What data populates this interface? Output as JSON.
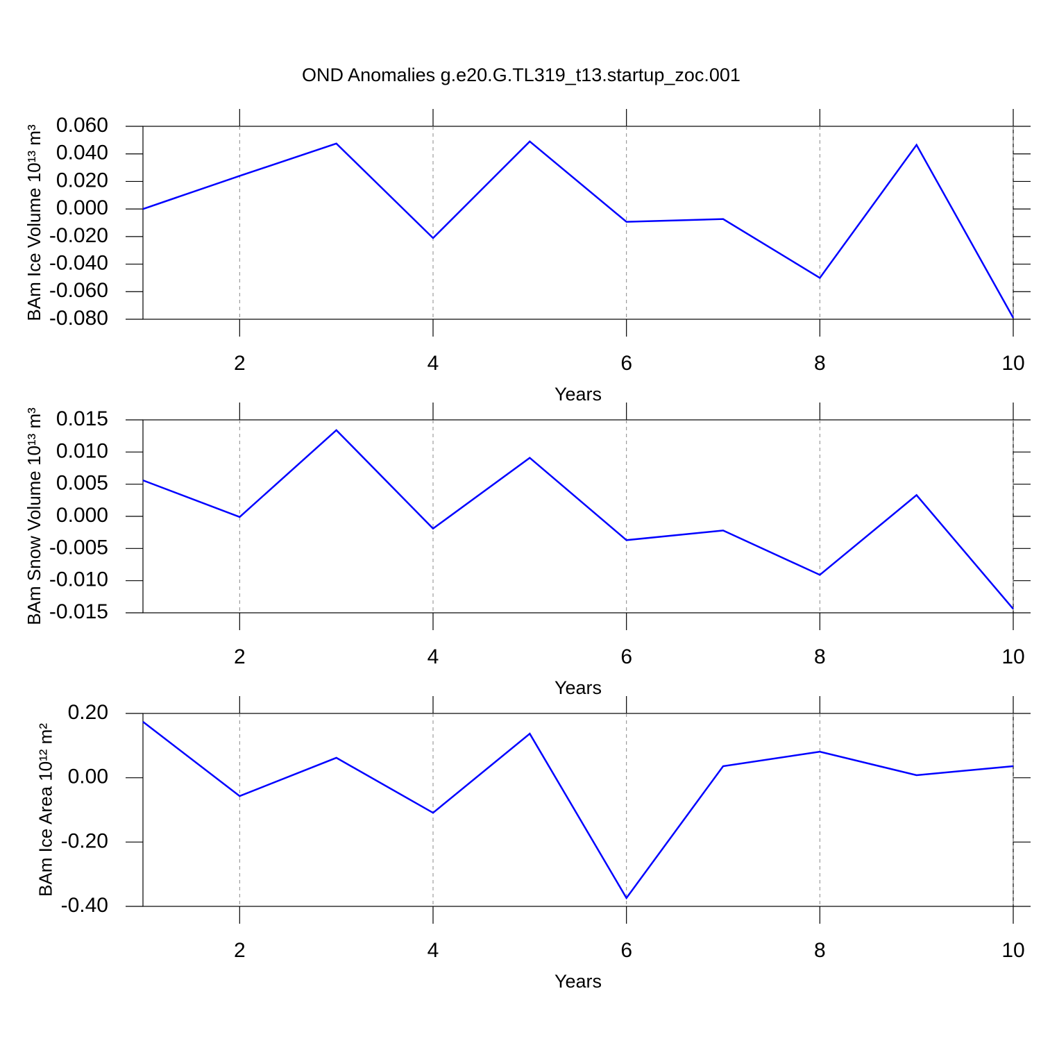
{
  "title": "OND Anomalies g.e20.G.TL319_t13.startup_zoc.001",
  "chart_data": [
    {
      "type": "line",
      "ylabel": "BAm Ice Volume 10¹³ m³",
      "xlabel": "Years",
      "x": [
        1,
        2,
        3,
        4,
        5,
        6,
        7,
        8,
        9,
        10
      ],
      "series": [
        {
          "color": "#0000ff",
          "values": [
            0.0,
            0.024,
            0.0475,
            -0.0211,
            0.049,
            -0.0093,
            -0.0073,
            -0.05,
            0.0465,
            -0.079
          ]
        }
      ],
      "xlim": [
        1,
        10
      ],
      "xticks": [
        2,
        4,
        6,
        8,
        10
      ],
      "ylim": [
        -0.08,
        0.06
      ],
      "yticks": [
        {
          "value": -0.08,
          "label": "-0.080"
        },
        {
          "value": -0.06,
          "label": "-0.060"
        },
        {
          "value": -0.04,
          "label": "-0.040"
        },
        {
          "value": -0.02,
          "label": "-0.020"
        },
        {
          "value": 0,
          "label": "0.000"
        },
        {
          "value": 0.02,
          "label": "0.020"
        },
        {
          "value": 0.04,
          "label": "0.040"
        },
        {
          "value": 0.06,
          "label": "0.060"
        }
      ],
      "grid": true
    },
    {
      "type": "line",
      "ylabel": "BAm Snow Volume 10¹³ m³",
      "xlabel": "Years",
      "x": [
        1,
        2,
        3,
        4,
        5,
        6,
        7,
        8,
        9,
        10
      ],
      "series": [
        {
          "color": "#0000ff",
          "values": [
            0.0056,
            -0.0001,
            0.0134,
            -0.0019,
            0.0091,
            -0.0037,
            -0.0022,
            -0.0091,
            0.0033,
            -0.0144
          ]
        }
      ],
      "xlim": [
        1,
        10
      ],
      "xticks": [
        2,
        4,
        6,
        8,
        10
      ],
      "ylim": [
        -0.015,
        0.015
      ],
      "yticks": [
        {
          "value": -0.015,
          "label": "-0.015"
        },
        {
          "value": -0.01,
          "label": "-0.010"
        },
        {
          "value": -0.005,
          "label": "-0.005"
        },
        {
          "value": 0,
          "label": "0.000"
        },
        {
          "value": 0.005,
          "label": "0.005"
        },
        {
          "value": 0.01,
          "label": "0.010"
        },
        {
          "value": 0.015,
          "label": "0.015"
        }
      ],
      "grid": true
    },
    {
      "type": "line",
      "ylabel": "BAm Ice Area 10¹² m²",
      "xlabel": "Years",
      "x": [
        1,
        2,
        3,
        4,
        5,
        6,
        7,
        8,
        9,
        10
      ],
      "series": [
        {
          "color": "#0000ff",
          "values": [
            0.174,
            -0.057,
            0.062,
            -0.109,
            0.137,
            -0.374,
            0.036,
            0.081,
            0.008,
            0.036
          ]
        }
      ],
      "xlim": [
        1,
        10
      ],
      "xticks": [
        2,
        4,
        6,
        8,
        10
      ],
      "ylim": [
        -0.4,
        0.2
      ],
      "yticks": [
        {
          "value": -0.4,
          "label": "-0.40"
        },
        {
          "value": -0.2,
          "label": "-0.20"
        },
        {
          "value": 0,
          "label": "0.00"
        },
        {
          "value": 0.2,
          "label": "0.20"
        }
      ],
      "grid": true
    }
  ]
}
